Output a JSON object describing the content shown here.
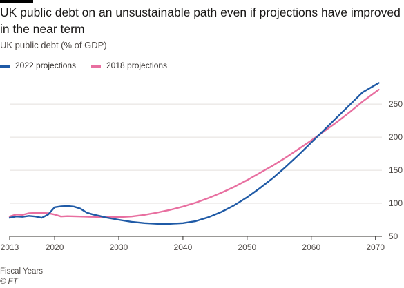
{
  "title": "UK public debt on an unsustainable path even if projections have improved in the near term",
  "subtitle": "UK public debt (% of GDP)",
  "footer": {
    "xlabel": "Fiscal Years",
    "source": "© FT"
  },
  "colors": {
    "series_2022": "#1f5aa6",
    "series_2018": "#e86fa0",
    "grid": "#e3dfdc",
    "axis": "#33302e"
  },
  "chart_data": {
    "type": "line",
    "title": "UK public debt on an unsustainable path even if projections have improved in the near term",
    "subtitle": "UK public debt (% of GDP)",
    "xlabel": "Fiscal Years",
    "ylabel": "",
    "xlim": [
      2013,
      2071
    ],
    "ylim": [
      50,
      295
    ],
    "x_ticks": [
      "2013",
      "2020",
      "2030",
      "2040",
      "2050",
      "2060",
      "2070"
    ],
    "y_ticks": [
      "50",
      "100",
      "150",
      "200",
      "250"
    ],
    "grid": "horizontal",
    "legend": "top-left",
    "series": [
      {
        "name": "2022 projections",
        "color": "#1f5aa6",
        "points": [
          [
            2013,
            78
          ],
          [
            2014,
            80
          ],
          [
            2015,
            79.5
          ],
          [
            2016,
            81
          ],
          [
            2017,
            80
          ],
          [
            2018,
            78
          ],
          [
            2019,
            83
          ],
          [
            2020,
            94
          ],
          [
            2021,
            95.5
          ],
          [
            2022,
            96
          ],
          [
            2023,
            95
          ],
          [
            2024,
            92
          ],
          [
            2025,
            86
          ],
          [
            2026,
            83
          ],
          [
            2027,
            81
          ],
          [
            2028,
            78.5
          ],
          [
            2030,
            75
          ],
          [
            2032,
            72
          ],
          [
            2034,
            70
          ],
          [
            2036,
            69
          ],
          [
            2038,
            69
          ],
          [
            2040,
            70
          ],
          [
            2042,
            73
          ],
          [
            2044,
            79
          ],
          [
            2046,
            87
          ],
          [
            2048,
            97
          ],
          [
            2050,
            109
          ],
          [
            2052,
            123
          ],
          [
            2054,
            138
          ],
          [
            2056,
            155
          ],
          [
            2058,
            173
          ],
          [
            2060,
            192
          ],
          [
            2062,
            211
          ],
          [
            2064,
            230
          ],
          [
            2066,
            249
          ],
          [
            2068,
            268
          ],
          [
            2070.5,
            282
          ]
        ]
      },
      {
        "name": "2018 projections",
        "color": "#e86fa0",
        "points": [
          [
            2013,
            80
          ],
          [
            2014,
            83
          ],
          [
            2015,
            82.5
          ],
          [
            2016,
            85
          ],
          [
            2017,
            85.5
          ],
          [
            2018,
            85.5
          ],
          [
            2019,
            85
          ],
          [
            2020,
            83
          ],
          [
            2021,
            80
          ],
          [
            2022,
            80.5
          ],
          [
            2024,
            80
          ],
          [
            2026,
            79.5
          ],
          [
            2028,
            79
          ],
          [
            2030,
            79
          ],
          [
            2032,
            80
          ],
          [
            2034,
            82.5
          ],
          [
            2036,
            86
          ],
          [
            2038,
            90
          ],
          [
            2040,
            95
          ],
          [
            2042,
            101
          ],
          [
            2044,
            108
          ],
          [
            2046,
            116
          ],
          [
            2048,
            125
          ],
          [
            2050,
            135
          ],
          [
            2052,
            146
          ],
          [
            2054,
            157
          ],
          [
            2056,
            169
          ],
          [
            2058,
            182
          ],
          [
            2060,
            195
          ],
          [
            2062,
            209
          ],
          [
            2064,
            223
          ],
          [
            2066,
            238
          ],
          [
            2068,
            254
          ],
          [
            2070.5,
            272
          ]
        ]
      }
    ]
  }
}
